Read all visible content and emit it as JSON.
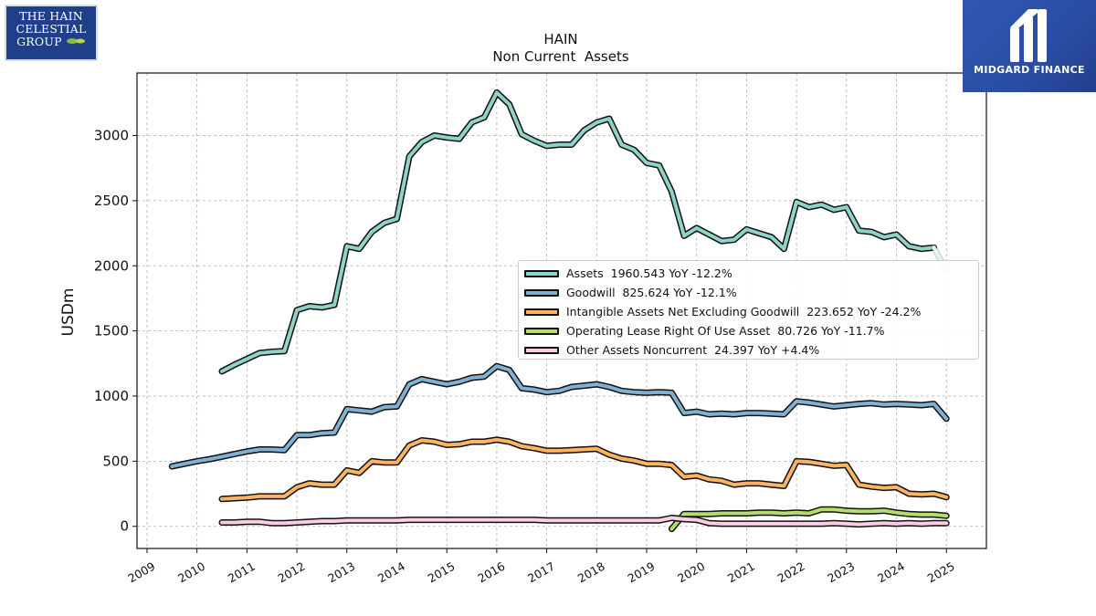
{
  "chart_data": {
    "type": "line",
    "title": "HAIN",
    "subtitle": "Non Current  Assets",
    "ylabel": "USDm",
    "xlabel": "",
    "ylim": [
      -170,
      3480
    ],
    "xlim": [
      2008.8,
      2025.8
    ],
    "yticks": [
      0,
      500,
      1000,
      1500,
      2000,
      2500,
      3000
    ],
    "xticks": [
      "2009",
      "2010",
      "2011",
      "2012",
      "2013",
      "2014",
      "2015",
      "2016",
      "2017",
      "2018",
      "2019",
      "2020",
      "2021",
      "2022",
      "2023",
      "2024",
      "2025"
    ],
    "grid": true,
    "legend_position": "center-right",
    "series": [
      {
        "name": "Assets",
        "legend": "Assets  1960.543 YoY -12.2%",
        "color": "#8dd3c7",
        "points": [
          [
            2010.5,
            1190
          ],
          [
            2010.75,
            1240
          ],
          [
            2011.0,
            1285
          ],
          [
            2011.25,
            1330
          ],
          [
            2011.5,
            1340
          ],
          [
            2011.75,
            1345
          ],
          [
            2012.0,
            1660
          ],
          [
            2012.25,
            1690
          ],
          [
            2012.5,
            1680
          ],
          [
            2012.75,
            1700
          ],
          [
            2013.0,
            2150
          ],
          [
            2013.25,
            2130
          ],
          [
            2013.5,
            2260
          ],
          [
            2013.75,
            2330
          ],
          [
            2014.0,
            2360
          ],
          [
            2014.25,
            2840
          ],
          [
            2014.5,
            2950
          ],
          [
            2014.75,
            3000
          ],
          [
            2015.0,
            2985
          ],
          [
            2015.25,
            2975
          ],
          [
            2015.5,
            3100
          ],
          [
            2015.75,
            3140
          ],
          [
            2016.0,
            3330
          ],
          [
            2016.25,
            3240
          ],
          [
            2016.5,
            3010
          ],
          [
            2016.75,
            2960
          ],
          [
            2017.0,
            2920
          ],
          [
            2017.25,
            2930
          ],
          [
            2017.5,
            2930
          ],
          [
            2017.75,
            3040
          ],
          [
            2018.0,
            3100
          ],
          [
            2018.25,
            3130
          ],
          [
            2018.5,
            2930
          ],
          [
            2018.75,
            2890
          ],
          [
            2019.0,
            2790
          ],
          [
            2019.25,
            2770
          ],
          [
            2019.5,
            2570
          ],
          [
            2019.75,
            2230
          ],
          [
            2020.0,
            2290
          ],
          [
            2020.25,
            2240
          ],
          [
            2020.5,
            2190
          ],
          [
            2020.75,
            2200
          ],
          [
            2021.0,
            2280
          ],
          [
            2021.25,
            2250
          ],
          [
            2021.5,
            2220
          ],
          [
            2021.75,
            2130
          ],
          [
            2022.0,
            2490
          ],
          [
            2022.25,
            2450
          ],
          [
            2022.5,
            2470
          ],
          [
            2022.75,
            2430
          ],
          [
            2023.0,
            2450
          ],
          [
            2023.25,
            2270
          ],
          [
            2023.5,
            2260
          ],
          [
            2023.75,
            2220
          ],
          [
            2024.0,
            2240
          ],
          [
            2024.25,
            2150
          ],
          [
            2024.5,
            2130
          ],
          [
            2024.75,
            2140
          ],
          [
            2025.0,
            1960
          ]
        ],
        "fade_last": true
      },
      {
        "name": "Goodwill",
        "legend": "Goodwill  825.624 YoY -12.1%",
        "color": "#80b1d3",
        "points": [
          [
            2009.5,
            460
          ],
          [
            2009.75,
            480
          ],
          [
            2010.0,
            500
          ],
          [
            2010.25,
            515
          ],
          [
            2010.5,
            535
          ],
          [
            2010.75,
            555
          ],
          [
            2011.0,
            575
          ],
          [
            2011.25,
            590
          ],
          [
            2011.5,
            590
          ],
          [
            2011.75,
            585
          ],
          [
            2012.0,
            700
          ],
          [
            2012.25,
            700
          ],
          [
            2012.5,
            715
          ],
          [
            2012.75,
            720
          ],
          [
            2013.0,
            900
          ],
          [
            2013.25,
            890
          ],
          [
            2013.5,
            880
          ],
          [
            2013.75,
            915
          ],
          [
            2014.0,
            920
          ],
          [
            2014.25,
            1090
          ],
          [
            2014.5,
            1130
          ],
          [
            2014.75,
            1110
          ],
          [
            2015.0,
            1090
          ],
          [
            2015.25,
            1110
          ],
          [
            2015.5,
            1140
          ],
          [
            2015.75,
            1150
          ],
          [
            2016.0,
            1230
          ],
          [
            2016.25,
            1200
          ],
          [
            2016.5,
            1060
          ],
          [
            2016.75,
            1050
          ],
          [
            2017.0,
            1030
          ],
          [
            2017.25,
            1040
          ],
          [
            2017.5,
            1070
          ],
          [
            2017.75,
            1080
          ],
          [
            2018.0,
            1090
          ],
          [
            2018.25,
            1070
          ],
          [
            2018.5,
            1040
          ],
          [
            2018.75,
            1030
          ],
          [
            2019.0,
            1025
          ],
          [
            2019.25,
            1030
          ],
          [
            2019.5,
            1025
          ],
          [
            2019.75,
            870
          ],
          [
            2020.0,
            880
          ],
          [
            2020.25,
            860
          ],
          [
            2020.5,
            865
          ],
          [
            2020.75,
            860
          ],
          [
            2021.0,
            870
          ],
          [
            2021.25,
            870
          ],
          [
            2021.5,
            865
          ],
          [
            2021.75,
            860
          ],
          [
            2022.0,
            960
          ],
          [
            2022.25,
            950
          ],
          [
            2022.5,
            935
          ],
          [
            2022.75,
            920
          ],
          [
            2023.0,
            930
          ],
          [
            2023.25,
            940
          ],
          [
            2023.5,
            945
          ],
          [
            2023.75,
            935
          ],
          [
            2024.0,
            940
          ],
          [
            2024.25,
            935
          ],
          [
            2024.5,
            930
          ],
          [
            2024.75,
            940
          ],
          [
            2025.0,
            826
          ]
        ]
      },
      {
        "name": "Intangible Assets Net Excluding Goodwill",
        "legend": "Intangible Assets Net Excluding Goodwill  223.652 YoY -24.2%",
        "color": "#fdb462",
        "points": [
          [
            2010.5,
            210
          ],
          [
            2010.75,
            215
          ],
          [
            2011.0,
            220
          ],
          [
            2011.25,
            230
          ],
          [
            2011.5,
            230
          ],
          [
            2011.75,
            230
          ],
          [
            2012.0,
            300
          ],
          [
            2012.25,
            330
          ],
          [
            2012.5,
            320
          ],
          [
            2012.75,
            320
          ],
          [
            2013.0,
            430
          ],
          [
            2013.25,
            410
          ],
          [
            2013.5,
            500
          ],
          [
            2013.75,
            490
          ],
          [
            2014.0,
            490
          ],
          [
            2014.25,
            620
          ],
          [
            2014.5,
            660
          ],
          [
            2014.75,
            650
          ],
          [
            2015.0,
            625
          ],
          [
            2015.25,
            630
          ],
          [
            2015.5,
            650
          ],
          [
            2015.75,
            650
          ],
          [
            2016.0,
            665
          ],
          [
            2016.25,
            650
          ],
          [
            2016.5,
            615
          ],
          [
            2016.75,
            600
          ],
          [
            2017.0,
            580
          ],
          [
            2017.25,
            580
          ],
          [
            2017.5,
            585
          ],
          [
            2017.75,
            590
          ],
          [
            2018.0,
            595
          ],
          [
            2018.25,
            550
          ],
          [
            2018.5,
            520
          ],
          [
            2018.75,
            505
          ],
          [
            2019.0,
            480
          ],
          [
            2019.25,
            480
          ],
          [
            2019.5,
            470
          ],
          [
            2019.75,
            380
          ],
          [
            2020.0,
            390
          ],
          [
            2020.25,
            360
          ],
          [
            2020.5,
            350
          ],
          [
            2020.75,
            320
          ],
          [
            2021.0,
            330
          ],
          [
            2021.25,
            330
          ],
          [
            2021.5,
            320
          ],
          [
            2021.75,
            310
          ],
          [
            2022.0,
            500
          ],
          [
            2022.25,
            495
          ],
          [
            2022.5,
            480
          ],
          [
            2022.75,
            465
          ],
          [
            2023.0,
            470
          ],
          [
            2023.25,
            320
          ],
          [
            2023.5,
            305
          ],
          [
            2023.75,
            295
          ],
          [
            2024.0,
            300
          ],
          [
            2024.25,
            250
          ],
          [
            2024.5,
            245
          ],
          [
            2024.75,
            250
          ],
          [
            2025.0,
            224
          ]
        ]
      },
      {
        "name": "Operating Lease Right Of Use Asset",
        "legend": "Operating Lease Right Of Use Asset  80.726 YoY -11.7%",
        "color": "#b3de69",
        "points": [
          [
            2019.5,
            -20
          ],
          [
            2019.75,
            95
          ],
          [
            2020.0,
            95
          ],
          [
            2020.25,
            95
          ],
          [
            2020.5,
            100
          ],
          [
            2020.75,
            100
          ],
          [
            2021.0,
            100
          ],
          [
            2021.25,
            105
          ],
          [
            2021.5,
            105
          ],
          [
            2021.75,
            100
          ],
          [
            2022.0,
            105
          ],
          [
            2022.25,
            100
          ],
          [
            2022.5,
            130
          ],
          [
            2022.75,
            130
          ],
          [
            2023.0,
            120
          ],
          [
            2023.25,
            115
          ],
          [
            2023.5,
            115
          ],
          [
            2023.75,
            120
          ],
          [
            2024.0,
            105
          ],
          [
            2024.25,
            95
          ],
          [
            2024.5,
            90
          ],
          [
            2024.75,
            90
          ],
          [
            2025.0,
            81
          ]
        ]
      },
      {
        "name": "Other Assets Noncurrent",
        "legend": "Other Assets Noncurrent  24.397 YoY +4.4%",
        "color": "#fccde5",
        "points": [
          [
            2010.5,
            30
          ],
          [
            2010.75,
            30
          ],
          [
            2011.0,
            35
          ],
          [
            2011.25,
            35
          ],
          [
            2011.5,
            25
          ],
          [
            2011.75,
            25
          ],
          [
            2012.0,
            30
          ],
          [
            2012.25,
            35
          ],
          [
            2012.5,
            40
          ],
          [
            2012.75,
            40
          ],
          [
            2013.0,
            45
          ],
          [
            2013.25,
            45
          ],
          [
            2013.5,
            45
          ],
          [
            2013.75,
            45
          ],
          [
            2014.0,
            45
          ],
          [
            2014.25,
            50
          ],
          [
            2014.5,
            50
          ],
          [
            2014.75,
            50
          ],
          [
            2015.0,
            50
          ],
          [
            2015.25,
            50
          ],
          [
            2015.5,
            50
          ],
          [
            2015.75,
            50
          ],
          [
            2016.0,
            50
          ],
          [
            2016.25,
            50
          ],
          [
            2016.5,
            50
          ],
          [
            2016.75,
            50
          ],
          [
            2017.0,
            45
          ],
          [
            2017.25,
            45
          ],
          [
            2017.5,
            45
          ],
          [
            2017.75,
            45
          ],
          [
            2018.0,
            45
          ],
          [
            2018.25,
            45
          ],
          [
            2018.5,
            45
          ],
          [
            2018.75,
            45
          ],
          [
            2019.0,
            45
          ],
          [
            2019.25,
            45
          ],
          [
            2019.5,
            65
          ],
          [
            2019.75,
            55
          ],
          [
            2020.0,
            50
          ],
          [
            2020.25,
            25
          ],
          [
            2020.5,
            20
          ],
          [
            2020.75,
            20
          ],
          [
            2021.0,
            20
          ],
          [
            2021.25,
            20
          ],
          [
            2021.5,
            20
          ],
          [
            2021.75,
            20
          ],
          [
            2022.0,
            20
          ],
          [
            2022.25,
            20
          ],
          [
            2022.5,
            20
          ],
          [
            2022.75,
            25
          ],
          [
            2023.0,
            20
          ],
          [
            2023.25,
            15
          ],
          [
            2023.5,
            20
          ],
          [
            2023.75,
            25
          ],
          [
            2024.0,
            20
          ],
          [
            2024.25,
            25
          ],
          [
            2024.5,
            20
          ],
          [
            2024.75,
            25
          ],
          [
            2025.0,
            24
          ]
        ]
      }
    ]
  },
  "logos": {
    "left": {
      "line1": "THE HAIN",
      "line2": "CELESTIAL",
      "line3": "GROUP"
    },
    "right": {
      "brand": "MIDGARD FINANCE"
    }
  }
}
